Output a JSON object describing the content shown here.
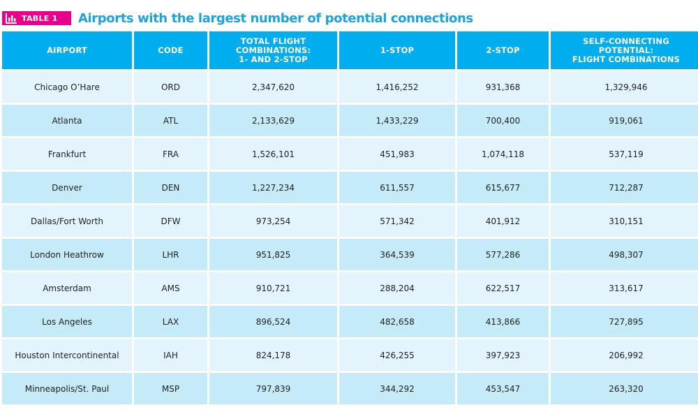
{
  "badge": {
    "icon": "bar-chart-icon",
    "label": "TABLE 1"
  },
  "title": "Airports with the largest number of potential connections",
  "colors": {
    "header_bg": "#00adee",
    "row_light": "#e3f4fc",
    "row_dark": "#c5eaf8",
    "badge": "#e6008c",
    "title": "#1aa3dc"
  },
  "chart_data": {
    "type": "table",
    "title": "Airports with the largest number of potential connections",
    "columns": [
      "AIRPORT",
      "CODE",
      "TOTAL FLIGHT COMBINATIONS: 1- AND 2-STOP",
      "1-STOP",
      "2-STOP",
      "SELF-CONNECTING POTENTIAL: FLIGHT COMBINATIONS"
    ],
    "header_lines": [
      [
        "AIRPORT"
      ],
      [
        "CODE"
      ],
      [
        "TOTAL FLIGHT",
        "COMBINATIONS:",
        "1- AND 2-STOP"
      ],
      [
        "1-STOP"
      ],
      [
        "2-STOP"
      ],
      [
        "SELF-CONNECTING",
        "POTENTIAL:",
        "FLIGHT COMBINATIONS"
      ]
    ],
    "rows": [
      [
        "Chicago O’Hare",
        "ORD",
        "2,347,620",
        "1,416,252",
        "931,368",
        "1,329,946"
      ],
      [
        "Atlanta",
        "ATL",
        "2,133,629",
        "1,433,229",
        "700,400",
        "919,061"
      ],
      [
        "Frankfurt",
        "FRA",
        "1,526,101",
        "451,983",
        "1,074,118",
        "537,119"
      ],
      [
        "Denver",
        "DEN",
        "1,227,234",
        "611,557",
        "615,677",
        "712,287"
      ],
      [
        "Dallas/Fort Worth",
        "DFW",
        "973,254",
        "571,342",
        "401,912",
        "310,151"
      ],
      [
        "London Heathrow",
        "LHR",
        "951,825",
        "364,539",
        "577,286",
        "498,307"
      ],
      [
        "Amsterdam",
        "AMS",
        "910,721",
        "288,204",
        "622,517",
        "313,617"
      ],
      [
        "Los Angeles",
        "LAX",
        "896,524",
        "482,658",
        "413,866",
        "727,895"
      ],
      [
        "Houston Intercontinental",
        "IAH",
        "824,178",
        "426,255",
        "397,923",
        "206,992"
      ],
      [
        "Minneapolis/St. Paul",
        "MSP",
        "797,839",
        "344,292",
        "453,547",
        "263,320"
      ]
    ]
  }
}
